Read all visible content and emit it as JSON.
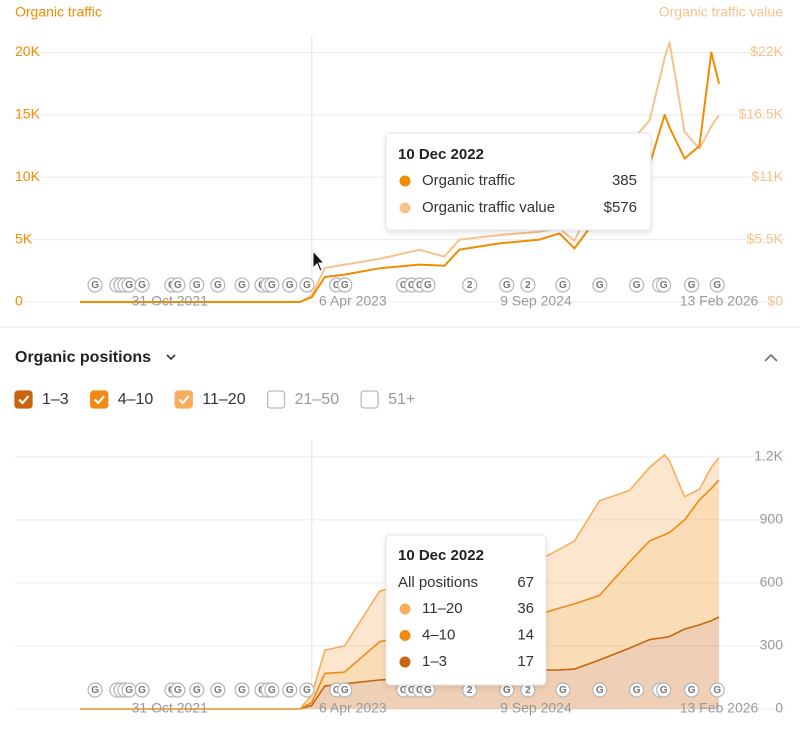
{
  "chart_data": [
    {
      "type": "line",
      "y_label": "Organic traffic",
      "y2_label": "Organic traffic value",
      "x": [
        "2021-02-17",
        "2022-06-17",
        "2022-11-06",
        "2022-12-10",
        "2023-01-16",
        "2023-03-13",
        "2023-06-21",
        "2023-10-13",
        "2023-12-23",
        "2024-02-04",
        "2024-05-28",
        "2024-09-19",
        "2024-11-15",
        "2024-12-28",
        "2025-03-09",
        "2025-06-03",
        "2025-07-30",
        "2025-09-11",
        "2025-09-25",
        "2025-11-07",
        "2025-12-19",
        "2026-01-22",
        "2026-02-13"
      ],
      "xlim": [
        "2021-02-17",
        "2026-02-13"
      ],
      "xticks": [
        {
          "value": "2021-10-31",
          "label": "31 Oct 2021"
        },
        {
          "value": "2023-04-06",
          "label": "6 Apr 2023"
        },
        {
          "value": "2024-09-09",
          "label": "9 Sep 2024"
        },
        {
          "value": "2026-02-13",
          "label": "13 Feb 2026"
        }
      ],
      "ylim": [
        0,
        21400
      ],
      "yticks": [
        0,
        {
          "value": 5000,
          "label": "5K"
        },
        {
          "value": 10000,
          "label": "10K"
        },
        {
          "value": 15000,
          "label": "15K"
        },
        {
          "value": 20000,
          "label": "20K"
        }
      ],
      "y2lim": [
        0,
        23540
      ],
      "y2ticks": [
        {
          "value": 0,
          "label": "$0"
        },
        {
          "value": 5500,
          "label": "$5.5K"
        },
        {
          "value": 11000,
          "label": "$11K"
        },
        {
          "value": 16500,
          "label": "$16.5K"
        },
        {
          "value": 22000,
          "label": "$22K"
        }
      ],
      "grid": true,
      "series": [
        {
          "name": "Organic traffic",
          "color": "#f08c00",
          "values": [
            0,
            0,
            0,
            385,
            2000,
            2200,
            2700,
            3000,
            2900,
            4200,
            4700,
            5000,
            5500,
            4300,
            7000,
            9000,
            11000,
            15000,
            14000,
            11500,
            12500,
            20000,
            17500
          ]
        },
        {
          "name": "Organic traffic value",
          "color": "#f6c28e",
          "axis": "y2",
          "values": [
            0,
            0,
            0,
            576,
            3000,
            3300,
            3800,
            4600,
            4000,
            5500,
            5900,
            6200,
            6500,
            5400,
            10000,
            14000,
            16000,
            21500,
            22900,
            15000,
            13500,
            15500,
            16500
          ]
        }
      ],
      "tooltip": {
        "date": "10 Dec 2022",
        "rows": [
          {
            "value": 385
          },
          {
            "value": 576,
            "label": "$576"
          }
        ]
      }
    },
    {
      "type": "stacked_area",
      "title": "Organic positions",
      "inactive_filters": [
        "21–50",
        "51+"
      ],
      "x": [
        "2021-02-17",
        "2022-06-17",
        "2022-11-06",
        "2022-12-10",
        "2023-01-16",
        "2023-03-13",
        "2023-06-21",
        "2023-10-13",
        "2023-12-23",
        "2024-02-04",
        "2024-05-28",
        "2024-09-19",
        "2024-11-15",
        "2024-12-28",
        "2025-03-09",
        "2025-06-03",
        "2025-07-30",
        "2025-09-11",
        "2025-09-25",
        "2025-11-07",
        "2025-12-19",
        "2026-01-22",
        "2026-02-13"
      ],
      "xlim": [
        "2021-02-17",
        "2026-02-13"
      ],
      "xticks": [
        {
          "value": "2021-10-31",
          "label": "31 Oct 2021"
        },
        {
          "value": "2023-04-06",
          "label": "6 Apr 2023"
        },
        {
          "value": "2024-09-09",
          "label": "9 Sep 2024"
        },
        {
          "value": "2026-02-13",
          "label": "13 Feb 2026"
        }
      ],
      "ylim": [
        0,
        1280
      ],
      "yticks": [
        0,
        300,
        600,
        900,
        {
          "value": 1200,
          "label": "1.2K"
        }
      ],
      "grid": true,
      "series": [
        {
          "name": "1–3",
          "color": "#c9650c",
          "values": [
            0,
            0,
            0,
            17,
            110,
            120,
            138,
            150,
            150,
            165,
            176,
            185,
            186,
            190,
            233,
            290,
            330,
            340,
            345,
            380,
            400,
            420,
            438
          ]
        },
        {
          "name": "4–10",
          "color": "#f08a12",
          "values": [
            0,
            0,
            0,
            14,
            60,
            55,
            182,
            210,
            220,
            235,
            254,
            265,
            294,
            310,
            307,
            410,
            470,
            490,
            495,
            520,
            595,
            630,
            652
          ]
        },
        {
          "name": "11–20",
          "color": "#f7ad5c",
          "values": [
            0,
            0,
            0,
            36,
            110,
            125,
            240,
            260,
            270,
            260,
            260,
            260,
            280,
            300,
            450,
            340,
            350,
            380,
            340,
            110,
            50,
            100,
            105
          ]
        }
      ],
      "tooltip": {
        "date": "10 Dec 2022",
        "total_label": "All positions",
        "total": 67,
        "values": [
          17,
          14,
          36
        ]
      }
    }
  ],
  "events": [
    {
      "x": "2021-04-01",
      "label": "G"
    },
    {
      "x": "2021-06-02",
      "label": "G"
    },
    {
      "x": "2021-06-14",
      "label": "G"
    },
    {
      "x": "2021-06-25",
      "label": "G"
    },
    {
      "x": "2021-07-07",
      "label": "G"
    },
    {
      "x": "2021-08-13",
      "label": "G"
    },
    {
      "x": "2021-11-06",
      "label": "G"
    },
    {
      "x": "2021-11-23",
      "label": "G"
    },
    {
      "x": "2022-01-16",
      "label": "G"
    },
    {
      "x": "2022-03-17",
      "label": "G"
    },
    {
      "x": "2022-05-25",
      "label": "G"
    },
    {
      "x": "2022-07-21",
      "label": "G"
    },
    {
      "x": "2022-08-07",
      "label": "G"
    },
    {
      "x": "2022-08-18",
      "label": "G"
    },
    {
      "x": "2022-10-08",
      "label": "G"
    },
    {
      "x": "2022-11-26",
      "label": "G"
    },
    {
      "x": "2023-02-19",
      "label": "G"
    },
    {
      "x": "2023-03-14",
      "label": "G"
    },
    {
      "x": "2023-08-29",
      "label": "G"
    },
    {
      "x": "2023-09-21",
      "label": "G"
    },
    {
      "x": "2023-10-14",
      "label": "G"
    },
    {
      "x": "2023-11-06",
      "label": "G"
    },
    {
      "x": "2024-03-04",
      "label": "2"
    },
    {
      "x": "2024-06-18",
      "label": "G"
    },
    {
      "x": "2024-08-17",
      "label": "2"
    },
    {
      "x": "2024-11-25",
      "label": "G"
    },
    {
      "x": "2025-03-10",
      "label": "G"
    },
    {
      "x": "2025-06-23",
      "label": "G"
    },
    {
      "x": "2025-08-28",
      "label": "G"
    },
    {
      "x": "2025-09-08",
      "label": "G"
    },
    {
      "x": "2025-11-27",
      "label": "G"
    },
    {
      "x": "2026-02-08",
      "label": "G"
    }
  ]
}
